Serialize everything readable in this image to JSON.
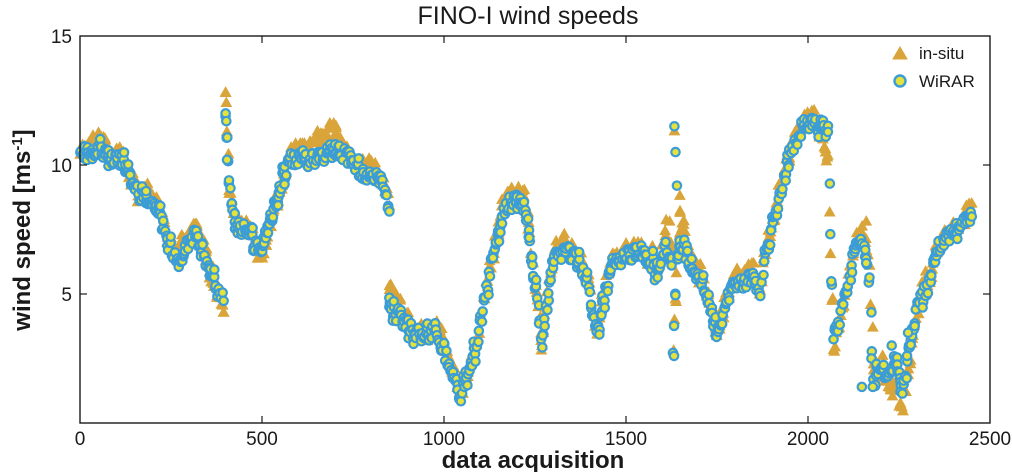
{
  "chart_data": {
    "type": "scatter",
    "title": "FINO-I wind speeds",
    "xlabel": "data acquisition",
    "ylabel_main": "wind speed [ms",
    "ylabel_sup": "-1",
    "ylabel_close": "]",
    "xlim": [
      0,
      2500
    ],
    "ylim": [
      0,
      15
    ],
    "xticks": [
      0,
      500,
      1000,
      1500,
      2000,
      2500
    ],
    "yticks": [
      5,
      10,
      15
    ],
    "grid": false,
    "legend_position": "top-right",
    "colors": {
      "in_situ": "#D9A53A",
      "wirar_edge": "#3C9DD6",
      "wirar_fill": "#E6E23C"
    },
    "series": [
      {
        "name": "in-situ",
        "marker": "triangle",
        "anchors": [
          [
            0,
            10.5
          ],
          [
            40,
            10.8
          ],
          [
            60,
            11.2
          ],
          [
            90,
            10.2
          ],
          [
            110,
            10.5
          ],
          [
            130,
            9.8
          ],
          [
            160,
            9.0
          ],
          [
            190,
            9.0
          ],
          [
            210,
            8.5
          ],
          [
            240,
            7.2
          ],
          [
            270,
            6.6
          ],
          [
            300,
            7.2
          ],
          [
            320,
            7.6
          ],
          [
            340,
            6.8
          ],
          [
            360,
            5.9
          ],
          [
            380,
            5.0
          ],
          [
            395,
            4.5
          ],
          [
            400,
            12.8
          ],
          [
            410,
            9.0
          ],
          [
            430,
            7.6
          ],
          [
            460,
            7.6
          ],
          [
            480,
            7.2
          ],
          [
            500,
            6.4
          ],
          [
            520,
            7.6
          ],
          [
            560,
            9.4
          ],
          [
            580,
            10.4
          ],
          [
            620,
            10.6
          ],
          [
            660,
            11.0
          ],
          [
            700,
            11.4
          ],
          [
            740,
            10.5
          ],
          [
            760,
            10.0
          ],
          [
            800,
            10.0
          ],
          [
            830,
            9.5
          ],
          [
            850,
            8.4
          ],
          [
            850,
            5.3
          ],
          [
            880,
            4.6
          ],
          [
            900,
            4.0
          ],
          [
            920,
            3.5
          ],
          [
            950,
            3.6
          ],
          [
            980,
            3.7
          ],
          [
            1000,
            3.0
          ],
          [
            1020,
            2.2
          ],
          [
            1045,
            1.2
          ],
          [
            1060,
            1.6
          ],
          [
            1080,
            2.5
          ],
          [
            1100,
            4.0
          ],
          [
            1120,
            5.5
          ],
          [
            1140,
            7.0
          ],
          [
            1160,
            8.3
          ],
          [
            1180,
            8.8
          ],
          [
            1200,
            9.0
          ],
          [
            1220,
            8.8
          ],
          [
            1230,
            8.0
          ],
          [
            1240,
            6.8
          ],
          [
            1260,
            4.5
          ],
          [
            1270,
            3.0
          ],
          [
            1280,
            4.5
          ],
          [
            1300,
            6.6
          ],
          [
            1340,
            6.9
          ],
          [
            1380,
            6.3
          ],
          [
            1400,
            5.2
          ],
          [
            1420,
            3.5
          ],
          [
            1440,
            5.2
          ],
          [
            1460,
            6.3
          ],
          [
            1500,
            6.7
          ],
          [
            1540,
            6.9
          ],
          [
            1570,
            6.4
          ],
          [
            1590,
            6.0
          ],
          [
            1610,
            7.6
          ],
          [
            1625,
            6.5
          ],
          [
            1630,
            3.0
          ],
          [
            1640,
            6.0
          ],
          [
            1650,
            8.0
          ],
          [
            1670,
            6.6
          ],
          [
            1690,
            6.0
          ],
          [
            1710,
            5.7
          ],
          [
            1730,
            4.8
          ],
          [
            1750,
            3.6
          ],
          [
            1770,
            4.6
          ],
          [
            1790,
            5.4
          ],
          [
            1810,
            5.7
          ],
          [
            1830,
            5.6
          ],
          [
            1850,
            6.0
          ],
          [
            1870,
            5.0
          ],
          [
            1880,
            6.5
          ],
          [
            1900,
            7.5
          ],
          [
            1920,
            9.0
          ],
          [
            1940,
            10.0
          ],
          [
            1960,
            11.0
          ],
          [
            1980,
            11.6
          ],
          [
            2000,
            12.0
          ],
          [
            2020,
            11.8
          ],
          [
            2040,
            10.8
          ],
          [
            2055,
            10.2
          ],
          [
            2070,
            3.0
          ],
          [
            2090,
            4.0
          ],
          [
            2110,
            5.5
          ],
          [
            2130,
            7.0
          ],
          [
            2150,
            7.5
          ],
          [
            2170,
            6.0
          ],
          [
            2180,
            2.2
          ],
          [
            2200,
            2.0
          ],
          [
            2220,
            1.5
          ],
          [
            2240,
            1.2
          ],
          [
            2260,
            0.7
          ],
          [
            2280,
            2.5
          ],
          [
            2300,
            4.5
          ],
          [
            2330,
            5.5
          ],
          [
            2360,
            7.0
          ],
          [
            2400,
            7.5
          ],
          [
            2430,
            7.8
          ],
          [
            2450,
            8.5
          ]
        ],
        "spikes": [
          [
            400,
            12.8
          ],
          [
            402,
            12.4
          ],
          [
            1633,
            11.3
          ],
          [
            1620,
            7.8
          ],
          [
            1648,
            8.8
          ],
          [
            2160,
            7.8
          ],
          [
            2205,
            2.6
          ],
          [
            2258,
            0.6
          ]
        ]
      },
      {
        "name": "WiRAR",
        "marker": "circle",
        "anchors": [
          [
            0,
            10.3
          ],
          [
            40,
            10.6
          ],
          [
            60,
            10.6
          ],
          [
            90,
            10.1
          ],
          [
            110,
            10.2
          ],
          [
            130,
            9.8
          ],
          [
            160,
            8.9
          ],
          [
            190,
            8.7
          ],
          [
            210,
            8.4
          ],
          [
            240,
            7.0
          ],
          [
            270,
            6.2
          ],
          [
            300,
            7.0
          ],
          [
            320,
            7.3
          ],
          [
            340,
            6.6
          ],
          [
            360,
            5.8
          ],
          [
            380,
            5.0
          ],
          [
            395,
            4.8
          ],
          [
            400,
            12.0
          ],
          [
            410,
            9.2
          ],
          [
            430,
            7.7
          ],
          [
            460,
            7.4
          ],
          [
            480,
            7.0
          ],
          [
            500,
            6.8
          ],
          [
            520,
            7.7
          ],
          [
            560,
            9.6
          ],
          [
            580,
            10.2
          ],
          [
            620,
            10.2
          ],
          [
            660,
            10.3
          ],
          [
            700,
            10.6
          ],
          [
            740,
            10.3
          ],
          [
            760,
            9.8
          ],
          [
            800,
            9.6
          ],
          [
            830,
            9.3
          ],
          [
            850,
            8.2
          ],
          [
            850,
            4.5
          ],
          [
            880,
            4.2
          ],
          [
            900,
            3.8
          ],
          [
            920,
            3.4
          ],
          [
            950,
            3.5
          ],
          [
            980,
            3.5
          ],
          [
            1000,
            2.8
          ],
          [
            1020,
            2.0
          ],
          [
            1045,
            1.1
          ],
          [
            1060,
            1.5
          ],
          [
            1080,
            2.4
          ],
          [
            1100,
            3.9
          ],
          [
            1120,
            5.4
          ],
          [
            1140,
            6.8
          ],
          [
            1160,
            8.1
          ],
          [
            1180,
            8.6
          ],
          [
            1200,
            8.6
          ],
          [
            1220,
            8.4
          ],
          [
            1230,
            7.8
          ],
          [
            1240,
            6.6
          ],
          [
            1260,
            4.4
          ],
          [
            1270,
            2.8
          ],
          [
            1280,
            4.3
          ],
          [
            1300,
            6.4
          ],
          [
            1340,
            6.7
          ],
          [
            1380,
            6.1
          ],
          [
            1400,
            5.0
          ],
          [
            1420,
            3.3
          ],
          [
            1440,
            5.0
          ],
          [
            1460,
            6.1
          ],
          [
            1500,
            6.5
          ],
          [
            1540,
            6.7
          ],
          [
            1570,
            6.2
          ],
          [
            1590,
            5.8
          ],
          [
            1610,
            7.0
          ],
          [
            1625,
            6.2
          ],
          [
            1630,
            2.6
          ],
          [
            1640,
            6.2
          ],
          [
            1650,
            7.0
          ],
          [
            1670,
            6.4
          ],
          [
            1690,
            5.8
          ],
          [
            1710,
            5.5
          ],
          [
            1730,
            4.6
          ],
          [
            1750,
            3.4
          ],
          [
            1770,
            4.4
          ],
          [
            1790,
            5.2
          ],
          [
            1810,
            5.5
          ],
          [
            1830,
            5.4
          ],
          [
            1850,
            5.8
          ],
          [
            1870,
            4.8
          ],
          [
            1880,
            6.3
          ],
          [
            1900,
            7.3
          ],
          [
            1920,
            8.8
          ],
          [
            1940,
            9.8
          ],
          [
            1960,
            10.8
          ],
          [
            1980,
            11.3
          ],
          [
            2000,
            11.7
          ],
          [
            2020,
            11.5
          ],
          [
            2040,
            11.6
          ],
          [
            2055,
            11.3
          ],
          [
            2070,
            3.3
          ],
          [
            2090,
            4.2
          ],
          [
            2110,
            5.3
          ],
          [
            2130,
            6.8
          ],
          [
            2150,
            7.0
          ],
          [
            2170,
            5.5
          ],
          [
            2180,
            1.6
          ],
          [
            2200,
            2.2
          ],
          [
            2220,
            1.8
          ],
          [
            2240,
            2.5
          ],
          [
            2260,
            1.0
          ],
          [
            2280,
            3.0
          ],
          [
            2300,
            4.5
          ],
          [
            2330,
            5.3
          ],
          [
            2360,
            6.8
          ],
          [
            2400,
            7.4
          ],
          [
            2430,
            7.8
          ],
          [
            2450,
            8.0
          ]
        ],
        "spikes": [
          [
            400,
            12.0
          ],
          [
            402,
            11.7
          ],
          [
            404,
            10.2
          ],
          [
            1633,
            11.5
          ],
          [
            1636,
            10.5
          ],
          [
            1640,
            9.2
          ],
          [
            1632,
            2.6
          ],
          [
            2148,
            1.4
          ],
          [
            2160,
            6.2
          ],
          [
            2178,
            1.4
          ],
          [
            2230,
            3.0
          ],
          [
            2275,
            3.5
          ]
        ]
      }
    ]
  }
}
